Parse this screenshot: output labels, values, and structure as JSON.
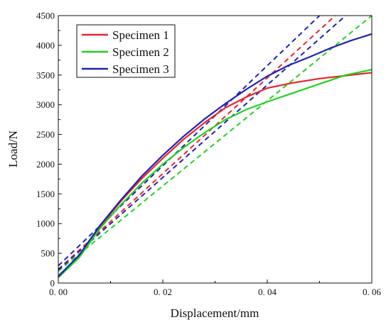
{
  "chart_data": {
    "type": "line",
    "xlabel": "Displacement/mm",
    "ylabel": "Load/N",
    "xlim": [
      0,
      0.06
    ],
    "ylim": [
      0,
      4500
    ],
    "xticks": [
      0,
      0.02,
      0.04,
      0.06
    ],
    "xtick_labels": [
      "0. 00",
      "0. 02",
      "0. 04",
      "0. 06"
    ],
    "yticks": [
      0,
      500,
      1000,
      1500,
      2000,
      2500,
      3000,
      3500,
      4000,
      4500
    ],
    "ytick_labels": [
      "0",
      "500",
      "1000",
      "1500",
      "2000",
      "2500",
      "3000",
      "3500",
      "4000",
      "4500"
    ],
    "grid": false,
    "legend": "top-left",
    "series": [
      {
        "name": "Specimen 1",
        "color": "#e8262b",
        "points": [
          [
            0,
            120
          ],
          [
            0.004,
            450
          ],
          [
            0.008,
            950
          ],
          [
            0.012,
            1380
          ],
          [
            0.016,
            1760
          ],
          [
            0.02,
            2100
          ],
          [
            0.024,
            2420
          ],
          [
            0.028,
            2700
          ],
          [
            0.032,
            2950
          ],
          [
            0.036,
            3130
          ],
          [
            0.04,
            3280
          ],
          [
            0.045,
            3370
          ],
          [
            0.05,
            3440
          ],
          [
            0.055,
            3490
          ],
          [
            0.06,
            3540
          ]
        ]
      },
      {
        "name": "Specimen 2",
        "color": "#21d321",
        "points": [
          [
            0,
            90
          ],
          [
            0.004,
            430
          ],
          [
            0.008,
            920
          ],
          [
            0.012,
            1320
          ],
          [
            0.016,
            1680
          ],
          [
            0.02,
            2000
          ],
          [
            0.024,
            2280
          ],
          [
            0.028,
            2530
          ],
          [
            0.032,
            2750
          ],
          [
            0.036,
            2920
          ],
          [
            0.04,
            3050
          ],
          [
            0.045,
            3200
          ],
          [
            0.05,
            3350
          ],
          [
            0.055,
            3500
          ],
          [
            0.06,
            3590
          ]
        ]
      },
      {
        "name": "Specimen 3",
        "color": "#1f22b4",
        "points": [
          [
            0,
            110
          ],
          [
            0.004,
            470
          ],
          [
            0.008,
            970
          ],
          [
            0.012,
            1400
          ],
          [
            0.016,
            1800
          ],
          [
            0.02,
            2150
          ],
          [
            0.024,
            2470
          ],
          [
            0.028,
            2760
          ],
          [
            0.032,
            3020
          ],
          [
            0.036,
            3260
          ],
          [
            0.04,
            3480
          ],
          [
            0.044,
            3660
          ],
          [
            0.048,
            3800
          ],
          [
            0.052,
            3950
          ],
          [
            0.056,
            4080
          ],
          [
            0.06,
            4190
          ]
        ]
      }
    ],
    "reference_lines": [
      {
        "color": "#e8262b",
        "points": [
          [
            0,
            230
          ],
          [
            0.053,
            4500
          ]
        ]
      },
      {
        "color": "#21d321",
        "points": [
          [
            0,
            200
          ],
          [
            0.06,
            4500
          ]
        ]
      },
      {
        "color": "#1f22b4",
        "points": [
          [
            0,
            290
          ],
          [
            0.05,
            4500
          ]
        ]
      },
      {
        "color": "#1f22b4",
        "points": [
          [
            0,
            220
          ],
          [
            0.055,
            4500
          ]
        ]
      }
    ]
  }
}
